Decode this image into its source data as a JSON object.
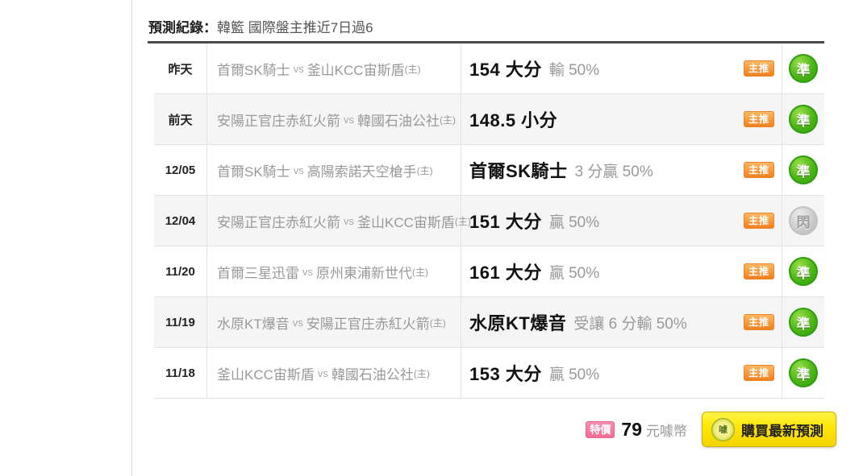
{
  "header": {
    "title_label": "預測紀錄：",
    "title_text": "韓籃 國際盤主推近7日過6"
  },
  "table": {
    "rows": [
      {
        "date": "昨天",
        "team1": "首爾SK騎士",
        "vs": "vs",
        "team2": "釜山KCC宙斯盾",
        "tag": "(主)",
        "pick": "154 大分",
        "result": "輸 50%",
        "badge": "主推",
        "stamp": "準",
        "stamp_type": "green"
      },
      {
        "date": "前天",
        "team1": "安陽正官庄赤紅火箭",
        "vs": "vs",
        "team2": "韓國石油公社",
        "tag": "(主)",
        "pick": "148.5 小分",
        "result": "",
        "badge": "主推",
        "stamp": "準",
        "stamp_type": "green"
      },
      {
        "date": "12/05",
        "team1": "首爾SK騎士",
        "vs": "vs",
        "team2": "高陽索諾天空槍手",
        "tag": "(主)",
        "pick": "首爾SK騎士",
        "result": "3 分贏 50%",
        "badge": "主推",
        "stamp": "準",
        "stamp_type": "green"
      },
      {
        "date": "12/04",
        "team1": "安陽正官庄赤紅火箭",
        "vs": "vs",
        "team2": "釜山KCC宙斯盾",
        "tag": "(主)",
        "pick": "151 大分",
        "result": "贏 50%",
        "badge": "主推",
        "stamp": "閃",
        "stamp_type": "gray"
      },
      {
        "date": "11/20",
        "team1": "首爾三星迅雷",
        "vs": "vs",
        "team2": "原州東浦新世代",
        "tag": "(主)",
        "pick": "161 大分",
        "result": "贏 50%",
        "badge": "主推",
        "stamp": "準",
        "stamp_type": "green"
      },
      {
        "date": "11/19",
        "team1": "水原KT爆音",
        "vs": "vs",
        "team2": "安陽正官庄赤紅火箭",
        "tag": "(主)",
        "pick": "水原KT爆音",
        "result": "受讓 6 分輸 50%",
        "badge": "主推",
        "stamp": "準",
        "stamp_type": "green"
      },
      {
        "date": "11/18",
        "team1": "釜山KCC宙斯盾",
        "vs": "vs",
        "team2": "韓國石油公社",
        "tag": "(主)",
        "pick": "153 大分",
        "result": "贏 50%",
        "badge": "主推",
        "stamp": "準",
        "stamp_type": "green"
      }
    ]
  },
  "footer": {
    "price_badge": "特價",
    "price_value": "79",
    "price_unit": "元噱幣",
    "coin_char": "噱",
    "buy_button": "購買最新預測"
  },
  "colors": {
    "accent_orange": "#f0801f",
    "stamp_green": "#3aa912",
    "stamp_gray": "#c4c4c4",
    "price_pink": "#ef6d95",
    "button_yellow": "#ffe603",
    "rule_dark": "#4b4b4b"
  }
}
